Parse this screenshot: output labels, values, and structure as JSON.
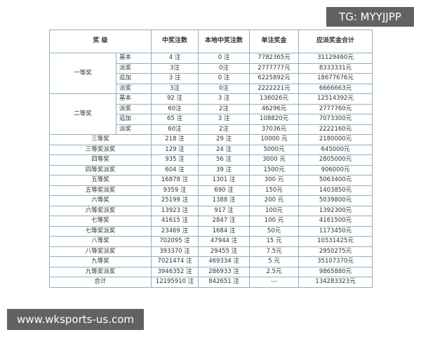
{
  "watermark_top": "TG: MYYJJPP",
  "watermark_bottom": "www.wksports-us.com",
  "table": {
    "header": [
      "奖 级",
      "中奖注数",
      "本地中奖注数",
      "单注奖金",
      "应派奖金合计"
    ],
    "groups": [
      {
        "label": "一等奖",
        "rows": [
          [
            "基本",
            "4 注",
            "0 注",
            "7782365元",
            "31129460元"
          ],
          [
            "派奖",
            "3注",
            "0注",
            "2777777元",
            "8333331元"
          ],
          [
            "追加",
            "3 注",
            "0 注",
            "6225892元",
            "18677676元"
          ],
          [
            "派奖",
            "3注",
            "0注",
            "2222221元",
            "6666663元"
          ]
        ]
      },
      {
        "label": "二等奖",
        "rows": [
          [
            "基本",
            "92 注",
            "3 注",
            "136026元",
            "12514392元"
          ],
          [
            "派奖",
            "60注",
            "2注",
            "46296元",
            "2777760元"
          ],
          [
            "追加",
            "65 注",
            "3 注",
            "108820元",
            "7073300元"
          ],
          [
            "派奖",
            "60注",
            "2注",
            "37036元",
            "2222160元"
          ]
        ]
      }
    ],
    "rows": [
      [
        "三等奖",
        "218 注",
        "29 注",
        "10000 元",
        "2180000元"
      ],
      [
        "三等奖派奖",
        "129 注",
        "24 注",
        "5000元",
        "645000元"
      ],
      [
        "四等奖",
        "935 注",
        "56 注",
        "3000 元",
        "2805000元"
      ],
      [
        "四等奖派奖",
        "604 注",
        "39 注",
        "1500元",
        "906000元"
      ],
      [
        "五等奖",
        "16878 注",
        "1301 注",
        "300 元",
        "5063400元"
      ],
      [
        "五等奖派奖",
        "9359 注",
        "690 注",
        "150元",
        "1403850元"
      ],
      [
        "六等奖",
        "25199 注",
        "1388 注",
        "200 元",
        "5039800元"
      ],
      [
        "六等奖派奖",
        "13923 注",
        "917 注",
        "100元",
        "1392300元"
      ],
      [
        "七等奖",
        "41615 注",
        "2847 注",
        "100 元",
        "4161500元"
      ],
      [
        "七等奖派奖",
        "23469 注",
        "1684 注",
        "50元",
        "1173450元"
      ],
      [
        "八等奖",
        "702095 注",
        "47944 注",
        "15 元",
        "10531425元"
      ],
      [
        "八等奖派奖",
        "393370 注",
        "29455 注",
        "7.5元",
        "2950275元"
      ],
      [
        "九等奖",
        "7021474 注",
        "469334 注",
        "5 元",
        "35107370元"
      ],
      [
        "九等奖派奖",
        "3946352 注",
        "286933 注",
        "2.5元",
        "9865880元"
      ],
      [
        "合计",
        "12195910 注",
        "842651 注",
        "---",
        "134283323元"
      ]
    ]
  }
}
